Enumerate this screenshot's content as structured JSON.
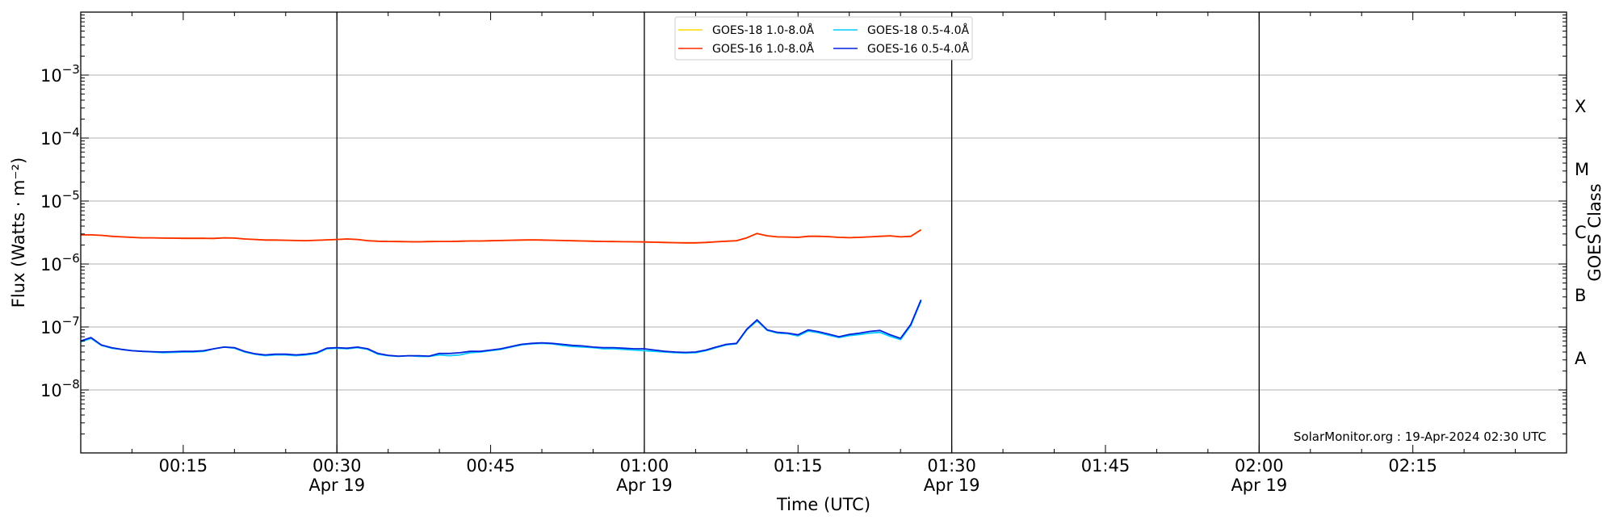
{
  "chart_data": {
    "type": "line",
    "xlabel": "Time (UTC)",
    "ylabel": "Flux (Watts · m⁻²)",
    "right_axis_label": "GOES Class",
    "y_scale": "log",
    "ylim": [
      1e-09,
      0.01
    ],
    "xlim": [
      "00:05",
      "02:30"
    ],
    "grid": "horizontal at each decade",
    "legend_position": "top-center",
    "credit": "SolarMonitor.org : 19-Apr-2024 02:30 UTC",
    "y_ticks": [
      {
        "value": 1e-08,
        "base": "10",
        "exp": "−8"
      },
      {
        "value": 1e-07,
        "base": "10",
        "exp": "−7"
      },
      {
        "value": 1e-06,
        "base": "10",
        "exp": "−6"
      },
      {
        "value": 1e-05,
        "base": "10",
        "exp": "−5"
      },
      {
        "value": 0.0001,
        "base": "10",
        "exp": "−4"
      },
      {
        "value": 0.001,
        "base": "10",
        "exp": "−3"
      }
    ],
    "x_ticks": [
      {
        "time": "00:15",
        "label": "00:15",
        "date": ""
      },
      {
        "time": "00:30",
        "label": "00:30",
        "date": "Apr 19"
      },
      {
        "time": "00:45",
        "label": "00:45",
        "date": ""
      },
      {
        "time": "01:00",
        "label": "01:00",
        "date": "Apr 19"
      },
      {
        "time": "01:15",
        "label": "01:15",
        "date": ""
      },
      {
        "time": "01:30",
        "label": "01:30",
        "date": "Apr 19"
      },
      {
        "time": "01:45",
        "label": "01:45",
        "date": ""
      },
      {
        "time": "02:00",
        "label": "02:00",
        "date": "Apr 19"
      },
      {
        "time": "02:15",
        "label": "02:15",
        "date": ""
      }
    ],
    "vertical_lines": [
      "00:30",
      "01:00",
      "01:30",
      "02:00"
    ],
    "goes_classes": [
      {
        "label": "A",
        "flux": 3.16e-08
      },
      {
        "label": "B",
        "flux": 3.16e-07
      },
      {
        "label": "C",
        "flux": 3.16e-06
      },
      {
        "label": "M",
        "flux": 3.16e-05
      },
      {
        "label": "X",
        "flux": 0.000316
      }
    ],
    "x": [
      "00:05",
      "00:06",
      "00:07",
      "00:08",
      "00:09",
      "00:10",
      "00:11",
      "00:12",
      "00:13",
      "00:14",
      "00:15",
      "00:16",
      "00:17",
      "00:18",
      "00:19",
      "00:20",
      "00:21",
      "00:22",
      "00:23",
      "00:24",
      "00:25",
      "00:26",
      "00:27",
      "00:28",
      "00:29",
      "00:30",
      "00:31",
      "00:32",
      "00:33",
      "00:34",
      "00:35",
      "00:36",
      "00:37",
      "00:38",
      "00:39",
      "00:40",
      "00:41",
      "00:42",
      "00:43",
      "00:44",
      "00:45",
      "00:46",
      "00:47",
      "00:48",
      "00:49",
      "00:50",
      "00:51",
      "00:52",
      "00:53",
      "00:54",
      "00:55",
      "00:56",
      "00:57",
      "00:58",
      "00:59",
      "01:00",
      "01:01",
      "01:02",
      "01:03",
      "01:04",
      "01:05",
      "01:06",
      "01:07",
      "01:08",
      "01:09",
      "01:10",
      "01:11",
      "01:12",
      "01:13",
      "01:14",
      "01:15",
      "01:16",
      "01:17",
      "01:18",
      "01:19",
      "01:20",
      "01:21",
      "01:22",
      "01:23",
      "01:24",
      "01:25",
      "01:26",
      "01:27"
    ],
    "series": [
      {
        "name": "GOES-18 1.0-8.0Å",
        "color": "#ffd700",
        "values": [
          2.9e-06,
          2.9e-06,
          2.85e-06,
          2.75e-06,
          2.7e-06,
          2.65e-06,
          2.6e-06,
          2.6e-06,
          2.58e-06,
          2.57e-06,
          2.56e-06,
          2.56e-06,
          2.56e-06,
          2.55e-06,
          2.6e-06,
          2.58e-06,
          2.5e-06,
          2.45e-06,
          2.4e-06,
          2.4e-06,
          2.38e-06,
          2.36e-06,
          2.35e-06,
          2.38e-06,
          2.42e-06,
          2.45e-06,
          2.5e-06,
          2.45e-06,
          2.35e-06,
          2.3e-06,
          2.28e-06,
          2.27e-06,
          2.26e-06,
          2.25e-06,
          2.27e-06,
          2.28e-06,
          2.28e-06,
          2.3e-06,
          2.32e-06,
          2.32e-06,
          2.34e-06,
          2.36e-06,
          2.38e-06,
          2.4e-06,
          2.42e-06,
          2.4e-06,
          2.38e-06,
          2.36e-06,
          2.34e-06,
          2.32e-06,
          2.3e-06,
          2.28e-06,
          2.27e-06,
          2.26e-06,
          2.25e-06,
          2.24e-06,
          2.22e-06,
          2.2e-06,
          2.18e-06,
          2.17e-06,
          2.17e-06,
          2.2e-06,
          2.25e-06,
          2.3e-06,
          2.35e-06,
          2.6e-06,
          3.05e-06,
          2.8e-06,
          2.7e-06,
          2.68e-06,
          2.65e-06,
          2.75e-06,
          2.75e-06,
          2.72e-06,
          2.65e-06,
          2.62e-06,
          2.65e-06,
          2.7e-06,
          2.75e-06,
          2.8e-06,
          2.7e-06,
          2.75e-06,
          3.5e-06
        ]
      },
      {
        "name": "GOES-16 1.0-8.0Å",
        "color": "#ff2a00",
        "values": [
          2.9e-06,
          2.9e-06,
          2.85e-06,
          2.75e-06,
          2.7e-06,
          2.65e-06,
          2.6e-06,
          2.6e-06,
          2.58e-06,
          2.57e-06,
          2.56e-06,
          2.56e-06,
          2.56e-06,
          2.55e-06,
          2.6e-06,
          2.58e-06,
          2.5e-06,
          2.45e-06,
          2.4e-06,
          2.4e-06,
          2.38e-06,
          2.36e-06,
          2.35e-06,
          2.38e-06,
          2.42e-06,
          2.45e-06,
          2.5e-06,
          2.45e-06,
          2.35e-06,
          2.3e-06,
          2.28e-06,
          2.27e-06,
          2.26e-06,
          2.25e-06,
          2.27e-06,
          2.28e-06,
          2.28e-06,
          2.3e-06,
          2.32e-06,
          2.32e-06,
          2.34e-06,
          2.36e-06,
          2.38e-06,
          2.4e-06,
          2.42e-06,
          2.4e-06,
          2.38e-06,
          2.36e-06,
          2.34e-06,
          2.32e-06,
          2.3e-06,
          2.28e-06,
          2.27e-06,
          2.26e-06,
          2.25e-06,
          2.24e-06,
          2.22e-06,
          2.2e-06,
          2.18e-06,
          2.17e-06,
          2.17e-06,
          2.2e-06,
          2.25e-06,
          2.3e-06,
          2.35e-06,
          2.6e-06,
          3.05e-06,
          2.8e-06,
          2.7e-06,
          2.68e-06,
          2.65e-06,
          2.75e-06,
          2.75e-06,
          2.72e-06,
          2.65e-06,
          2.62e-06,
          2.65e-06,
          2.7e-06,
          2.75e-06,
          2.8e-06,
          2.7e-06,
          2.75e-06,
          3.5e-06
        ]
      },
      {
        "name": "GOES-18 0.5-4.0Å",
        "color": "#00ccff",
        "values": [
          5.8e-08,
          6.6e-08,
          5.1e-08,
          4.6e-08,
          4.4e-08,
          4.2e-08,
          4.1e-08,
          4e-08,
          3.9e-08,
          3.95e-08,
          4e-08,
          4e-08,
          4.1e-08,
          4.5e-08,
          4.8e-08,
          4.6e-08,
          4e-08,
          3.7e-08,
          3.5e-08,
          3.6e-08,
          3.6e-08,
          3.5e-08,
          3.6e-08,
          3.8e-08,
          4.5e-08,
          4.6e-08,
          4.5e-08,
          4.7e-08,
          4.4e-08,
          3.7e-08,
          3.5e-08,
          3.4e-08,
          3.5e-08,
          3.4e-08,
          3.4e-08,
          3.6e-08,
          3.5e-08,
          3.6e-08,
          3.9e-08,
          4e-08,
          4.2e-08,
          4.4e-08,
          4.8e-08,
          5.2e-08,
          5.4e-08,
          5.5e-08,
          5.4e-08,
          5.1e-08,
          4.9e-08,
          4.8e-08,
          4.7e-08,
          4.5e-08,
          4.5e-08,
          4.4e-08,
          4.3e-08,
          4.2e-08,
          4.1e-08,
          4e-08,
          3.9e-08,
          3.85e-08,
          3.9e-08,
          4.2e-08,
          4.7e-08,
          5.2e-08,
          5.4e-08,
          9e-08,
          1.25e-07,
          8.8e-08,
          8e-08,
          7.8e-08,
          7.2e-08,
          8.6e-08,
          8.1e-08,
          7.4e-08,
          6.8e-08,
          7.3e-08,
          7.6e-08,
          8e-08,
          8.2e-08,
          7.1e-08,
          6.3e-08,
          1.05e-07,
          2.6e-07
        ]
      },
      {
        "name": "GOES-16 0.5-4.0Å",
        "color": "#0022dd",
        "values": [
          6e-08,
          6.8e-08,
          5.2e-08,
          4.7e-08,
          4.4e-08,
          4.2e-08,
          4.1e-08,
          4.05e-08,
          4e-08,
          4.05e-08,
          4.1e-08,
          4.1e-08,
          4.2e-08,
          4.5e-08,
          4.8e-08,
          4.7e-08,
          4.1e-08,
          3.75e-08,
          3.6e-08,
          3.7e-08,
          3.7e-08,
          3.6e-08,
          3.7e-08,
          3.9e-08,
          4.6e-08,
          4.7e-08,
          4.6e-08,
          4.8e-08,
          4.5e-08,
          3.8e-08,
          3.55e-08,
          3.45e-08,
          3.5e-08,
          3.5e-08,
          3.45e-08,
          3.8e-08,
          3.8e-08,
          3.9e-08,
          4.1e-08,
          4.1e-08,
          4.3e-08,
          4.5e-08,
          4.9e-08,
          5.3e-08,
          5.5e-08,
          5.6e-08,
          5.5e-08,
          5.3e-08,
          5.1e-08,
          5e-08,
          4.8e-08,
          4.7e-08,
          4.7e-08,
          4.6e-08,
          4.5e-08,
          4.5e-08,
          4.3e-08,
          4.1e-08,
          4e-08,
          3.95e-08,
          4e-08,
          4.3e-08,
          4.8e-08,
          5.3e-08,
          5.5e-08,
          9.2e-08,
          1.3e-07,
          9e-08,
          8.2e-08,
          8e-08,
          7.5e-08,
          9e-08,
          8.4e-08,
          7.7e-08,
          7e-08,
          7.6e-08,
          8e-08,
          8.5e-08,
          8.8e-08,
          7.5e-08,
          6.6e-08,
          1.1e-07,
          2.7e-07
        ]
      }
    ]
  }
}
